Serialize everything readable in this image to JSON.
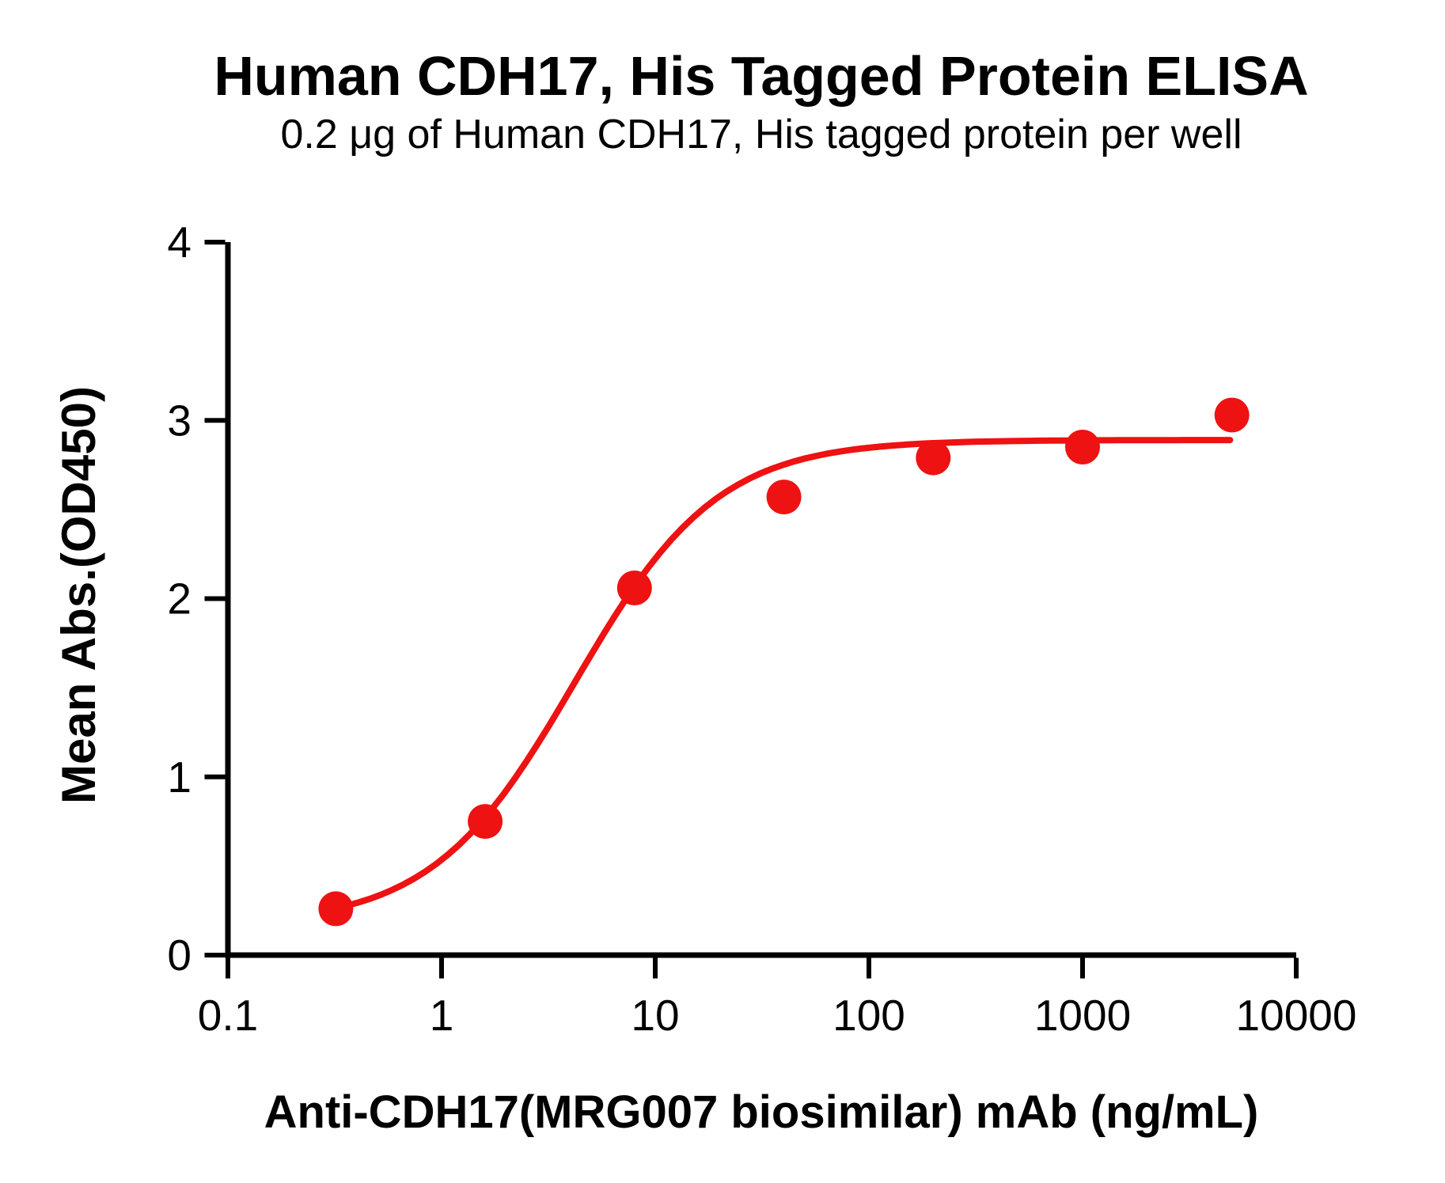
{
  "figure": {
    "title": "Human CDH17, His Tagged Protein ELISA",
    "subtitle": "0.2 μg of Human CDH17, His tagged protein per well"
  },
  "chart_data": {
    "type": "scatter",
    "title": "Human CDH17, His Tagged Protein ELISA",
    "subtitle": "0.2 μg of Human CDH17, His tagged protein per well",
    "xlabel": "Anti-CDH17(MRG007 biosimilar) mAb (ng/mL)",
    "ylabel": "Mean Abs.(OD450)",
    "x_scale": "log10",
    "y_scale": "linear",
    "xlim": [
      0.1,
      10000
    ],
    "ylim": [
      0,
      4
    ],
    "grid": false,
    "legend_position": "none",
    "x_ticks": {
      "values": [
        0.1,
        1,
        10,
        100,
        1000,
        10000
      ],
      "labels": [
        "0.1",
        "1",
        "10",
        "100",
        "1000",
        "10000"
      ]
    },
    "y_ticks": {
      "values": [
        0,
        1,
        2,
        3,
        4
      ],
      "labels": [
        "0",
        "1",
        "2",
        "3",
        "4"
      ]
    },
    "series": [
      {
        "name": "Anti-CDH17(MRG007 biosimilar) mAb",
        "marker": "circle",
        "color": "#EE1212",
        "points": [
          {
            "x": 0.32,
            "y": 0.26
          },
          {
            "x": 1.6,
            "y": 0.75
          },
          {
            "x": 8,
            "y": 2.06
          },
          {
            "x": 40,
            "y": 2.57
          },
          {
            "x": 200,
            "y": 2.79
          },
          {
            "x": 1000,
            "y": 2.85
          },
          {
            "x": 5000,
            "y": 3.03
          }
        ]
      }
    ],
    "fit_curve": {
      "model": "4PL",
      "bottom": 0.17,
      "top": 2.89,
      "ec50": 4.2,
      "hill": 1.3,
      "x_start": 0.32,
      "x_end": 4900,
      "color": "#EE1212"
    }
  },
  "colors": {
    "curve_red": "#EE1212",
    "axis_black": "#000000",
    "background": "#FFFFFF"
  }
}
